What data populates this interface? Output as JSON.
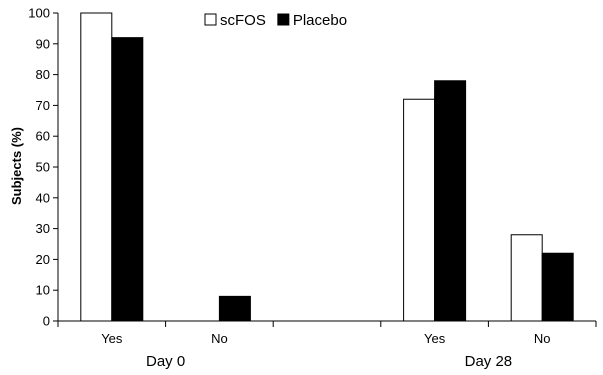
{
  "chart_data": {
    "type": "bar",
    "ylabel": "Subjects (%)",
    "ylim": [
      0,
      100
    ],
    "yticks": [
      0,
      10,
      20,
      30,
      40,
      50,
      60,
      70,
      80,
      90,
      100
    ],
    "grid": false,
    "legend_position": "top-center",
    "groups": [
      {
        "label": "Day 0",
        "categories": [
          "Yes",
          "No"
        ]
      },
      {
        "label": "",
        "categories": [
          ""
        ]
      },
      {
        "label": "Day 28",
        "categories": [
          "Yes",
          "No"
        ]
      }
    ],
    "categories": [
      "Yes",
      "No",
      "",
      "Yes",
      "No"
    ],
    "series": [
      {
        "name": "scFOS",
        "color": "#ffffff",
        "values": [
          100,
          0,
          null,
          72,
          28
        ]
      },
      {
        "name": "Placebo",
        "color": "#000000",
        "values": [
          92,
          8,
          null,
          78,
          22
        ]
      }
    ]
  }
}
